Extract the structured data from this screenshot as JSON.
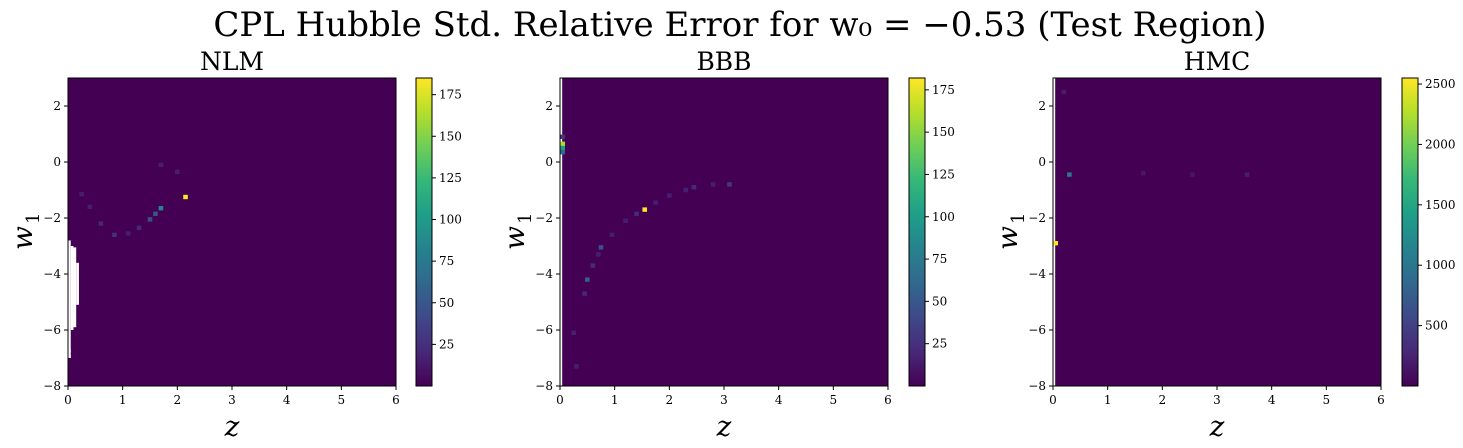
{
  "figure": {
    "suptitle": "CPL Hubble Std. Relative Error for w₀ = −0.53 (Test Region)"
  },
  "colors": {
    "background": "#440154",
    "viridis": [
      "#440154",
      "#482878",
      "#3e4989",
      "#31688e",
      "#26828e",
      "#1f9e89",
      "#35b779",
      "#6ece58",
      "#b5de2b",
      "#fde725"
    ],
    "masked": "#ffffff"
  },
  "chart_data": [
    {
      "type": "heatmap",
      "title": "NLM",
      "xlabel": "z",
      "ylabel": "w1",
      "xlim": [
        0,
        6
      ],
      "ylim": [
        -8,
        3
      ],
      "xticks": [
        "0",
        "1",
        "2",
        "3",
        "4",
        "5",
        "6"
      ],
      "yticks": [
        "−8",
        "−6",
        "−4",
        "−2",
        "0",
        "2"
      ],
      "ytick_values": [
        -8,
        -6,
        -4,
        -2,
        0,
        2
      ],
      "colorbar": {
        "min": 0,
        "max": 185,
        "ticks": [
          25,
          50,
          75,
          100,
          125,
          150,
          175
        ],
        "tick_labels": [
          "25",
          "50",
          "75",
          "100",
          "125",
          "150",
          "175"
        ]
      },
      "background_value": 0,
      "hot_cells": [
        {
          "z": 0.25,
          "w1": -1.15,
          "v": 15
        },
        {
          "z": 0.4,
          "w1": -1.6,
          "v": 15
        },
        {
          "z": 0.6,
          "w1": -2.2,
          "v": 20
        },
        {
          "z": 0.85,
          "w1": -2.6,
          "v": 25
        },
        {
          "z": 1.1,
          "w1": -2.55,
          "v": 15
        },
        {
          "z": 1.3,
          "w1": -2.35,
          "v": 20
        },
        {
          "z": 1.5,
          "w1": -2.05,
          "v": 45
        },
        {
          "z": 1.6,
          "w1": -1.85,
          "v": 50
        },
        {
          "z": 1.7,
          "w1": -1.65,
          "v": 85
        },
        {
          "z": 1.7,
          "w1": -0.1,
          "v": 15
        },
        {
          "z": 2.0,
          "w1": -0.35,
          "v": 15
        },
        {
          "z": 2.15,
          "w1": -1.25,
          "v": 185
        }
      ],
      "masked_cells": [
        {
          "z0": 0.0,
          "z1": 0.05,
          "w10": -7.0,
          "w11": -2.8
        },
        {
          "z0": 0.05,
          "z1": 0.1,
          "w10": -6.0,
          "w11": -3.0
        },
        {
          "z0": 0.1,
          "z1": 0.15,
          "w10": -5.9,
          "w11": -3.05
        },
        {
          "z0": 0.15,
          "z1": 0.2,
          "w10": -5.1,
          "w11": -3.6
        },
        {
          "z0": 0.0,
          "z1": 0.05,
          "w10": -7.0,
          "w11": -6.9
        },
        {
          "z0": 0.0,
          "z1": 0.05,
          "w10": -6.8,
          "w11": -6.7
        }
      ]
    },
    {
      "type": "heatmap",
      "title": "BBB",
      "xlabel": "z",
      "ylabel": "w1",
      "xlim": [
        0,
        6
      ],
      "ylim": [
        -8,
        3
      ],
      "xticks": [
        "0",
        "1",
        "2",
        "3",
        "4",
        "5",
        "6"
      ],
      "yticks": [
        "−8",
        "−6",
        "−4",
        "−2",
        "0",
        "2"
      ],
      "ytick_values": [
        -8,
        -6,
        -4,
        -2,
        0,
        2
      ],
      "colorbar": {
        "min": 0,
        "max": 182,
        "ticks": [
          25,
          50,
          75,
          100,
          125,
          150,
          175
        ],
        "tick_labels": [
          "25",
          "50",
          "75",
          "100",
          "125",
          "150",
          "175"
        ]
      },
      "background_value": 0,
      "hot_cells": [
        {
          "z": 0.05,
          "w1": 0.65,
          "v": 160
        },
        {
          "z": 0.05,
          "w1": 0.5,
          "v": 100
        },
        {
          "z": 0.05,
          "w1": 0.35,
          "v": 60
        },
        {
          "z": 0.05,
          "w1": 0.9,
          "v": 30
        },
        {
          "z": 0.25,
          "w1": -6.1,
          "v": 15
        },
        {
          "z": 0.3,
          "w1": -7.3,
          "v": 15
        },
        {
          "z": 0.45,
          "w1": -4.7,
          "v": 20
        },
        {
          "z": 0.5,
          "w1": -4.2,
          "v": 55
        },
        {
          "z": 0.6,
          "w1": -3.7,
          "v": 20
        },
        {
          "z": 0.7,
          "w1": -3.3,
          "v": 15
        },
        {
          "z": 0.75,
          "w1": -3.05,
          "v": 45
        },
        {
          "z": 0.95,
          "w1": -2.6,
          "v": 15
        },
        {
          "z": 1.2,
          "w1": -2.1,
          "v": 15
        },
        {
          "z": 1.4,
          "w1": -1.85,
          "v": 20
        },
        {
          "z": 1.55,
          "w1": -1.7,
          "v": 182
        },
        {
          "z": 1.75,
          "w1": -1.45,
          "v": 15
        },
        {
          "z": 2.0,
          "w1": -1.2,
          "v": 15
        },
        {
          "z": 2.3,
          "w1": -1.0,
          "v": 15
        },
        {
          "z": 2.45,
          "w1": -0.9,
          "v": 20
        },
        {
          "z": 2.8,
          "w1": -0.8,
          "v": 15
        },
        {
          "z": 3.1,
          "w1": -0.8,
          "v": 30
        }
      ],
      "masked_cells": [
        {
          "z0": 0.0,
          "z1": 0.04,
          "w10": -8.0,
          "w11": 3.0
        }
      ]
    },
    {
      "type": "heatmap",
      "title": "HMC",
      "xlabel": "z",
      "ylabel": "w1",
      "xlim": [
        0,
        6
      ],
      "ylim": [
        -8,
        3
      ],
      "xticks": [
        "0",
        "1",
        "2",
        "3",
        "4",
        "5",
        "6"
      ],
      "yticks": [
        "−8",
        "−6",
        "−4",
        "−2",
        "0",
        "2"
      ],
      "ytick_values": [
        -8,
        -6,
        -4,
        -2,
        0,
        2
      ],
      "colorbar": {
        "min": 0,
        "max": 2550,
        "ticks": [
          500,
          1000,
          1500,
          2000,
          2500
        ],
        "tick_labels": [
          "500",
          "1000",
          "1500",
          "2000",
          "2500"
        ]
      },
      "background_value": 0,
      "hot_cells": [
        {
          "z": 0.05,
          "w1": -2.9,
          "v": 2550
        },
        {
          "z": 0.3,
          "w1": -0.45,
          "v": 1000
        },
        {
          "z": 0.2,
          "w1": 2.5,
          "v": 200
        },
        {
          "z": 1.65,
          "w1": -0.4,
          "v": 150
        },
        {
          "z": 2.55,
          "w1": -0.45,
          "v": 150
        },
        {
          "z": 3.55,
          "w1": -0.45,
          "v": 200
        }
      ],
      "masked_cells": [
        {
          "z0": 0.0,
          "z1": 0.04,
          "w10": -8.0,
          "w11": 3.0
        }
      ]
    }
  ]
}
